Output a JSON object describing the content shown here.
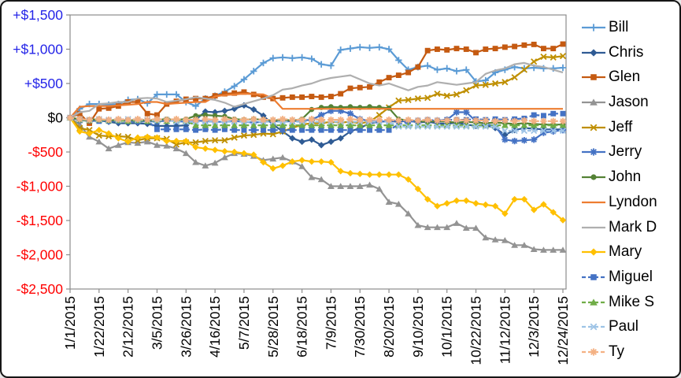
{
  "chart_data": {
    "type": "line",
    "title": "",
    "description": "Year-to-date running money totals per player, weekly points from 1/1/2015 to 12/24/2015",
    "x_axis": {
      "tick_labels": [
        "1/1/2015",
        "1/22/2015",
        "2/12/2015",
        "3/5/2015",
        "3/26/2015",
        "4/16/2015",
        "5/7/2015",
        "5/28/2015",
        "6/18/2015",
        "7/9/2015",
        "7/30/2015",
        "8/20/2015",
        "9/10/2015",
        "10/1/2015",
        "10/22/2015",
        "11/12/2015",
        "12/3/2015",
        "12/24/2015"
      ],
      "tick_every": 3,
      "points_per_series": 52
    },
    "y_axis": {
      "min": -2500,
      "max": 1500,
      "step": 500,
      "tick_labels": [
        "+$1,500",
        "+$1,000",
        "+$500",
        "$0",
        "-$500",
        "-$1,000",
        "-$1,500",
        "-$2,000",
        "-$2,500"
      ],
      "positive_color": "#2525E8",
      "zero_color": "#000000",
      "negative_color": "#FF0000"
    },
    "grid": false,
    "legend_position": "right",
    "series": [
      {
        "name": "Bill",
        "color": "#5B9BD5",
        "marker": "plus",
        "dashed": false,
        "values": [
          0,
          130,
          200,
          200,
          190,
          200,
          260,
          270,
          210,
          340,
          340,
          340,
          230,
          170,
          280,
          320,
          380,
          460,
          560,
          680,
          800,
          870,
          880,
          870,
          880,
          860,
          780,
          760,
          990,
          1010,
          1030,
          1020,
          1030,
          1000,
          840,
          700,
          740,
          760,
          700,
          720,
          680,
          700,
          530,
          545,
          660,
          700,
          740,
          720,
          730,
          720,
          720,
          730
        ]
      },
      {
        "name": "Chris",
        "color": "#2F5B94",
        "marker": "diamond",
        "dashed": false,
        "values": [
          0,
          -30,
          -50,
          -40,
          -60,
          -80,
          -80,
          -80,
          -90,
          -120,
          -120,
          -120,
          -110,
          -30,
          90,
          80,
          100,
          130,
          180,
          120,
          30,
          -100,
          -200,
          -300,
          -350,
          -320,
          -400,
          -350,
          -300,
          -200,
          -150,
          -80,
          -60,
          -50,
          -60,
          -40,
          -70,
          -60,
          -80,
          -90,
          -70,
          -100,
          -120,
          -110,
          -150,
          -250,
          -180,
          -150,
          -160,
          -170,
          -170,
          -170
        ]
      },
      {
        "name": "Glen",
        "color": "#C55A11",
        "marker": "square",
        "dashed": false,
        "values": [
          0,
          60,
          -80,
          130,
          140,
          170,
          230,
          230,
          60,
          40,
          200,
          240,
          270,
          280,
          280,
          320,
          350,
          360,
          375,
          340,
          300,
          280,
          290,
          300,
          300,
          310,
          300,
          310,
          350,
          430,
          440,
          450,
          520,
          585,
          620,
          660,
          740,
          980,
          1000,
          990,
          1010,
          1000,
          950,
          1000,
          1010,
          1030,
          1040,
          1060,
          1070,
          1010,
          1010,
          1075
        ]
      },
      {
        "name": "Jason",
        "color": "#939393",
        "marker": "triangle",
        "dashed": false,
        "values": [
          0,
          -100,
          -280,
          -350,
          -450,
          -400,
          -360,
          -370,
          -350,
          -400,
          -410,
          -450,
          -520,
          -650,
          -700,
          -660,
          -580,
          -520,
          -530,
          -560,
          -620,
          -600,
          -580,
          -640,
          -710,
          -870,
          -900,
          -1000,
          -1000,
          -1000,
          -1000,
          -980,
          -1040,
          -1230,
          -1260,
          -1400,
          -1570,
          -1600,
          -1600,
          -1600,
          -1540,
          -1610,
          -1610,
          -1750,
          -1780,
          -1790,
          -1860,
          -1860,
          -1920,
          -1930,
          -1930,
          -1930
        ]
      },
      {
        "name": "Jeff",
        "color": "#BF8F00",
        "marker": "x",
        "dashed": false,
        "values": [
          0,
          -150,
          -180,
          -260,
          -270,
          -270,
          -280,
          -330,
          -300,
          -300,
          -310,
          -390,
          -360,
          -360,
          -340,
          -330,
          -330,
          -290,
          -260,
          -250,
          -230,
          -240,
          -200,
          -150,
          -100,
          -80,
          -80,
          -60,
          -70,
          -60,
          -80,
          -60,
          40,
          150,
          250,
          260,
          280,
          290,
          350,
          320,
          340,
          400,
          470,
          480,
          500,
          520,
          590,
          700,
          820,
          890,
          880,
          900
        ]
      },
      {
        "name": "Jerry",
        "color": "#4472C4",
        "marker": "asterisk",
        "dashed": false,
        "values": [
          0,
          -30,
          -40,
          -30,
          -50,
          -40,
          -50,
          -60,
          -50,
          -60,
          -40,
          -50,
          -60,
          -40,
          -50,
          -60,
          -60,
          -50,
          -60,
          -70,
          -60,
          -50,
          -60,
          -50,
          -40,
          -30,
          40,
          100,
          100,
          60,
          -20,
          -50,
          -60,
          -50,
          -40,
          -50,
          -60,
          -50,
          -40,
          -30,
          80,
          80,
          -50,
          -100,
          -120,
          -320,
          -340,
          -330,
          -320,
          -220,
          -200,
          -180
        ]
      },
      {
        "name": "John",
        "color": "#548235",
        "marker": "circle",
        "dashed": false,
        "values": [
          0,
          -20,
          -30,
          -20,
          -40,
          -30,
          -40,
          -30,
          -40,
          -30,
          -20,
          -30,
          -20,
          30,
          40,
          30,
          20,
          -20,
          -30,
          -20,
          -30,
          -40,
          -30,
          -40,
          -20,
          120,
          150,
          160,
          150,
          160,
          150,
          160,
          150,
          140,
          -20,
          -40,
          -50,
          -60,
          -50,
          -60,
          -70,
          -60,
          -70,
          -80,
          -70,
          -80,
          -90,
          -80,
          -90,
          -100,
          -100,
          -100
        ]
      },
      {
        "name": "Lyndon",
        "color": "#ED7D31",
        "marker": "none",
        "dashed": false,
        "values": [
          0,
          160,
          170,
          170,
          170,
          180,
          190,
          200,
          230,
          230,
          200,
          210,
          220,
          230,
          230,
          310,
          330,
          340,
          350,
          345,
          340,
          280,
          130,
          130,
          130,
          130,
          130,
          130,
          130,
          130,
          130,
          130,
          130,
          130,
          130,
          130,
          130,
          130,
          130,
          130,
          130,
          130,
          130,
          130,
          130,
          130,
          130,
          130,
          130,
          130,
          130,
          130
        ]
      },
      {
        "name": "Mark D",
        "color": "#AFAFAF",
        "marker": "none",
        "dashed": false,
        "values": [
          0,
          80,
          100,
          200,
          210,
          230,
          230,
          280,
          290,
          280,
          230,
          250,
          270,
          300,
          280,
          260,
          220,
          160,
          200,
          240,
          280,
          330,
          410,
          430,
          470,
          500,
          550,
          580,
          600,
          620,
          560,
          500,
          470,
          500,
          450,
          400,
          450,
          470,
          520,
          500,
          480,
          500,
          520,
          640,
          690,
          720,
          780,
          800,
          760,
          740,
          700,
          660
        ]
      },
      {
        "name": "Mary",
        "color": "#FFC000",
        "marker": "diamond",
        "dashed": false,
        "values": [
          0,
          -200,
          -230,
          -180,
          -230,
          -300,
          -350,
          -290,
          -280,
          -290,
          -340,
          -340,
          -340,
          -430,
          -450,
          -470,
          -490,
          -500,
          -520,
          -540,
          -650,
          -740,
          -700,
          -640,
          -620,
          -640,
          -640,
          -650,
          -780,
          -810,
          -820,
          -830,
          -830,
          -830,
          -830,
          -900,
          -1040,
          -1190,
          -1290,
          -1250,
          -1210,
          -1210,
          -1250,
          -1270,
          -1290,
          -1400,
          -1190,
          -1190,
          -1345,
          -1265,
          -1380,
          -1495
        ]
      },
      {
        "name": "Miguel",
        "color": "#4472C4",
        "marker": "square",
        "dashed": true,
        "values": [
          0,
          -40,
          -40,
          -50,
          -40,
          -50,
          -40,
          -50,
          -40,
          -170,
          -170,
          -170,
          -170,
          -180,
          -170,
          -180,
          -170,
          -180,
          -180,
          -180,
          -180,
          -180,
          -180,
          -180,
          -180,
          -180,
          -180,
          -180,
          -180,
          -180,
          -180,
          -180,
          -180,
          -180,
          -100,
          -60,
          -40,
          -30,
          -40,
          -30,
          -30,
          -30,
          -20,
          -30,
          -20,
          -30,
          -20,
          -10,
          40,
          30,
          60,
          60
        ]
      },
      {
        "name": "Mike S",
        "color": "#70AD47",
        "marker": "triangle",
        "dashed": true,
        "values": [
          0,
          -30,
          -40,
          -30,
          -40,
          -40,
          -50,
          -40,
          -50,
          -40,
          -50,
          -40,
          -50,
          -110,
          -110,
          -110,
          -110,
          -110,
          -110,
          -110,
          -110,
          -110,
          -110,
          -110,
          -110,
          -110,
          -110,
          -110,
          -110,
          -110,
          -110,
          -110,
          -110,
          -110,
          -110,
          -110,
          -110,
          -110,
          -110,
          -110,
          -110,
          -110,
          -110,
          -110,
          -110,
          -110,
          -110,
          -110,
          -110,
          -110,
          -110,
          -110
        ]
      },
      {
        "name": "Paul",
        "color": "#9DC3E6",
        "marker": "x",
        "dashed": true,
        "values": [
          0,
          -20,
          -30,
          -20,
          -30,
          -30,
          -20,
          -30,
          -30,
          -40,
          -30,
          -60,
          -60,
          -60,
          -60,
          -60,
          -60,
          -60,
          -60,
          -60,
          -60,
          -60,
          -60,
          -60,
          -60,
          -60,
          -60,
          -60,
          -60,
          -60,
          -60,
          -60,
          -60,
          -60,
          -130,
          -130,
          -130,
          -130,
          -130,
          -130,
          -130,
          -130,
          -130,
          -130,
          -130,
          -190,
          -190,
          -190,
          -190,
          -190,
          -190,
          -190
        ]
      },
      {
        "name": "Ty",
        "color": "#F4B183",
        "marker": "asterisk",
        "dashed": true,
        "values": [
          0,
          -20,
          -30,
          -20,
          -30,
          -20,
          -30,
          -20,
          -30,
          -20,
          -30,
          -20,
          -30,
          -30,
          -20,
          -30,
          -20,
          -30,
          -30,
          -20,
          -30,
          -30,
          -20,
          -30,
          -30,
          -20,
          -30,
          -30,
          -30,
          -20,
          -30,
          -30,
          -30,
          -30,
          -40,
          -30,
          -40,
          -30,
          -40,
          -40,
          -30,
          -40,
          -40,
          -40,
          -50,
          -40,
          -50,
          -40,
          -50,
          -50,
          -50,
          -50
        ]
      }
    ]
  }
}
